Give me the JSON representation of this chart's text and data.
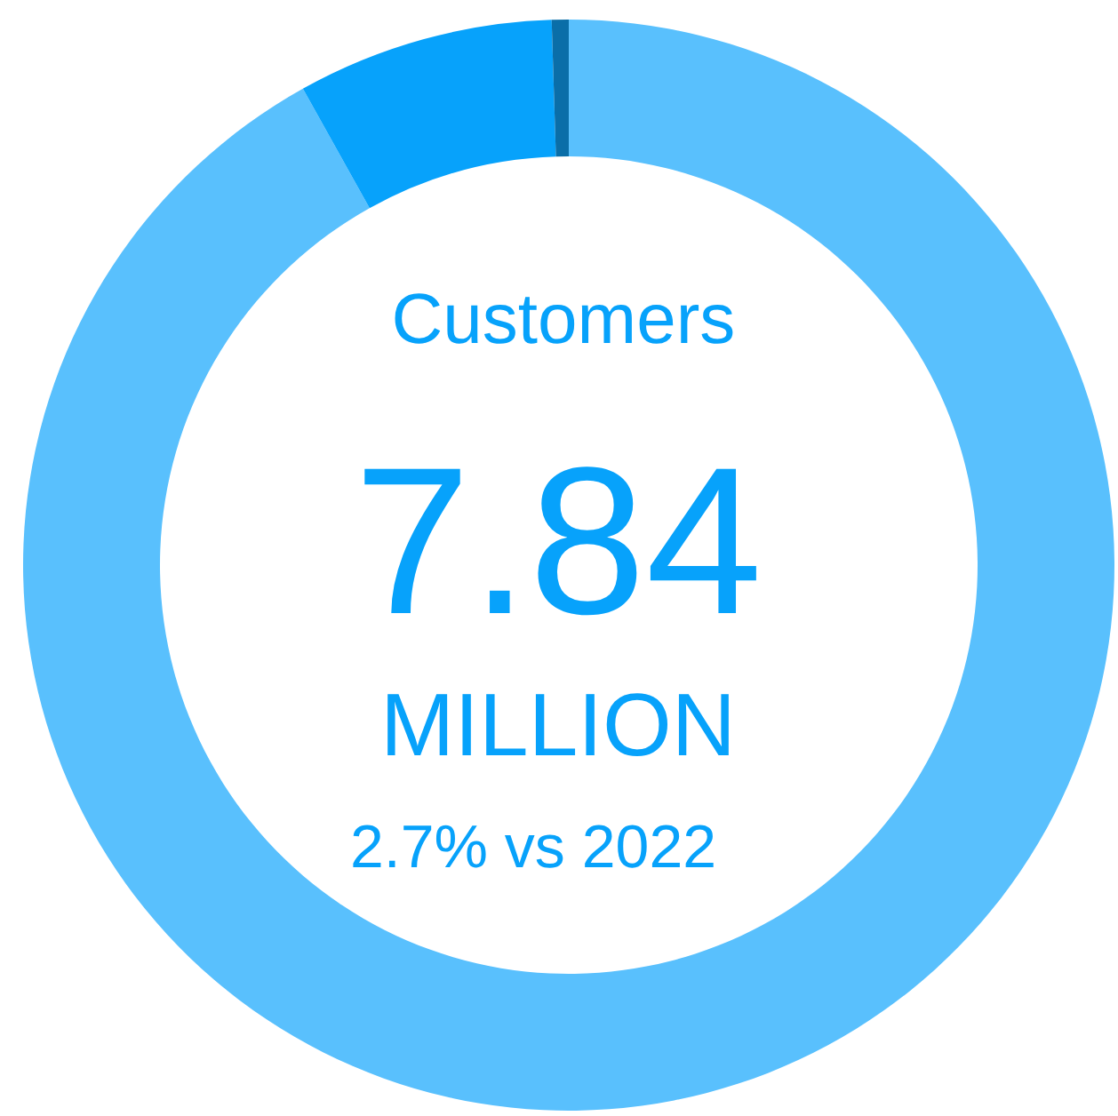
{
  "chart_data": {
    "type": "donut",
    "title": "Customers",
    "categories": [
      null,
      null,
      null
    ],
    "values": [
      91.9,
      7.6,
      0.5
    ],
    "colors": [
      "#59c0fd",
      "#07a2fb",
      "#0a6ea8"
    ],
    "annotations": [
      "7.84",
      "MILLION",
      "2.7% vs 2022"
    ]
  }
}
